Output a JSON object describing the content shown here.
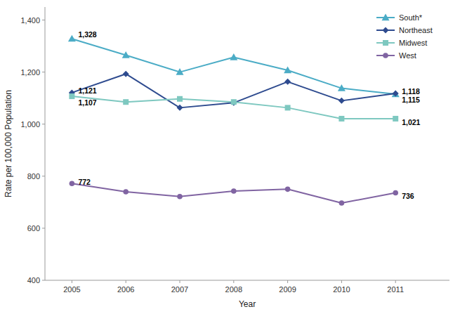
{
  "chart_data": {
    "type": "line",
    "x": [
      2005,
      2006,
      2007,
      2008,
      2009,
      2010,
      2011
    ],
    "xlabel": "Year",
    "ylabel": "Rate per 100,000 Population",
    "xlim": [
      2004.5,
      2012.0
    ],
    "xticks": [
      2005,
      2006,
      2007,
      2008,
      2009,
      2010,
      2011
    ],
    "ylim": [
      400,
      1450
    ],
    "yticks": [
      400,
      600,
      800,
      {
        "value": 1000,
        "label": "1,000"
      },
      {
        "value": 1200,
        "label": "1,200"
      },
      {
        "value": 1400,
        "label": "1,400"
      }
    ],
    "grid": false,
    "legend": "upper right",
    "series": [
      {
        "name": "South*",
        "color": "#4BACC6",
        "marker": "triangle",
        "values": [
          1328,
          1265,
          1200,
          1257,
          1207,
          1138,
          1115
        ]
      },
      {
        "name": "Northeast",
        "color": "#2E4B8F",
        "marker": "diamond",
        "values": [
          1121,
          1193,
          1063,
          1082,
          1163,
          1090,
          1118
        ]
      },
      {
        "name": "Midwest",
        "color": "#7EC8C0",
        "marker": "square",
        "values": [
          1107,
          1085,
          1097,
          1085,
          1063,
          1021,
          1021
        ]
      },
      {
        "name": "West",
        "color": "#8064A2",
        "marker": "circle",
        "values": [
          772,
          740,
          722,
          743,
          750,
          697,
          736
        ]
      }
    ],
    "annotations": [
      {
        "text": "1,328",
        "x": 2005,
        "y": 1345
      },
      {
        "text": "1,121",
        "x": 2005,
        "y": 1130
      },
      {
        "text": "1,107",
        "x": 2005,
        "y": 1083
      },
      {
        "text": "772",
        "x": 2005,
        "y": 778
      },
      {
        "text": "1,118",
        "x": 2011,
        "y": 1125
      },
      {
        "text": "1,115",
        "x": 2011,
        "y": 1102
      },
      {
        "text": "1,021",
        "x": 2011,
        "y": 1008
      },
      {
        "text": "736",
        "x": 2011,
        "y": 724
      }
    ]
  }
}
